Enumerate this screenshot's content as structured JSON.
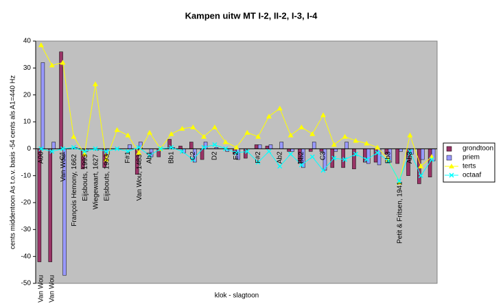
{
  "chart_data": {
    "type": "bar_line",
    "title": "Kampen uitw MT I-2, II-2, I-3, I-4",
    "ylabel": "cents middentoon As t.o.v. basis -54 cents als A1=440 Hz",
    "xlabel": "klok - slagtoon",
    "categories": [
      "A00",
      null,
      "C1",
      null,
      null,
      null,
      null,
      null,
      "F#1",
      null,
      "Ab1",
      null,
      "Bb1",
      null,
      "C2",
      null,
      "D2",
      null,
      "E2",
      null,
      "F#2",
      null,
      "Ab2",
      null,
      "Bb2",
      null,
      "C3",
      null,
      null,
      null,
      null,
      null,
      "Eb3",
      null,
      "Ab3",
      null,
      null
    ],
    "makers": [
      "Van Wou",
      "Van Wou",
      "Van Wou",
      "François Hemony, 1662",
      "Eijsbouts, 1993",
      "Wiegewaart, 1627",
      "Eijsbouts, 1993",
      null,
      null,
      "Van Wou, 1483",
      null,
      null,
      null,
      null,
      null,
      null,
      null,
      null,
      null,
      null,
      null,
      null,
      null,
      null,
      null,
      null,
      null,
      null,
      null,
      null,
      null,
      null,
      null,
      "Petit & Fritsen, 1941",
      null,
      null,
      null
    ],
    "series": [
      {
        "name": "grondtoon",
        "kind": "bar",
        "color": "#993366",
        "values": [
          -42,
          -42,
          36,
          0,
          -7.5,
          0,
          -7,
          0,
          0,
          -9.5,
          0,
          -3,
          3.5,
          1,
          2.5,
          -4,
          0,
          0,
          -2,
          -3.5,
          1.5,
          1,
          0,
          -1,
          -5.5,
          -1,
          -1,
          -7,
          -7,
          -7.5,
          -5,
          -5,
          -2,
          -5.5,
          -10,
          -13,
          -10.5
        ]
      },
      {
        "name": "priem",
        "kind": "bar",
        "color": "#9999ff",
        "values": [
          32,
          2.5,
          -47,
          0.5,
          -1,
          -0.5,
          -2,
          0,
          1.5,
          2.5,
          -3,
          0,
          0.5,
          -1.5,
          -5,
          2.5,
          0.5,
          -1,
          -4,
          0,
          1.5,
          1.5,
          2.5,
          -1,
          -7,
          2.5,
          -8,
          -1,
          2.5,
          0,
          -5.5,
          -6,
          -5,
          -1,
          -2,
          -4,
          -4.5
        ]
      },
      {
        "name": "terts",
        "kind": "line",
        "marker": "triangle",
        "color": "#ffff00",
        "values": [
          38.5,
          31,
          32,
          4.5,
          -2,
          24,
          -4,
          7,
          5,
          -1.5,
          6,
          0,
          5.5,
          7.5,
          8,
          4.5,
          8,
          2.5,
          0.5,
          6,
          4.5,
          12,
          15,
          5,
          8,
          5.5,
          12.5,
          1.5,
          4.5,
          3,
          2,
          0.5,
          -4,
          -12.5,
          5,
          -6.5,
          -3
        ]
      },
      {
        "name": "octaaf",
        "kind": "line",
        "marker": "x",
        "color": "#00ffff",
        "values": [
          0,
          -1,
          0,
          0.5,
          -1,
          0,
          -1,
          0,
          -1,
          0.5,
          -2.5,
          0,
          0.5,
          -1,
          -4,
          0.5,
          1.5,
          0,
          -1.5,
          -1,
          -5,
          -1,
          -6.5,
          -2,
          -6,
          -3,
          -8,
          -3.5,
          -4,
          -2,
          -4,
          -1.5,
          -4.5,
          -12,
          -1,
          -10,
          -4
        ]
      }
    ],
    "ylim": [
      -50,
      40
    ],
    "yticks": [
      -50,
      -40,
      -30,
      -20,
      -10,
      0,
      10,
      20,
      30,
      40
    ],
    "grid": false,
    "legend": "right"
  }
}
